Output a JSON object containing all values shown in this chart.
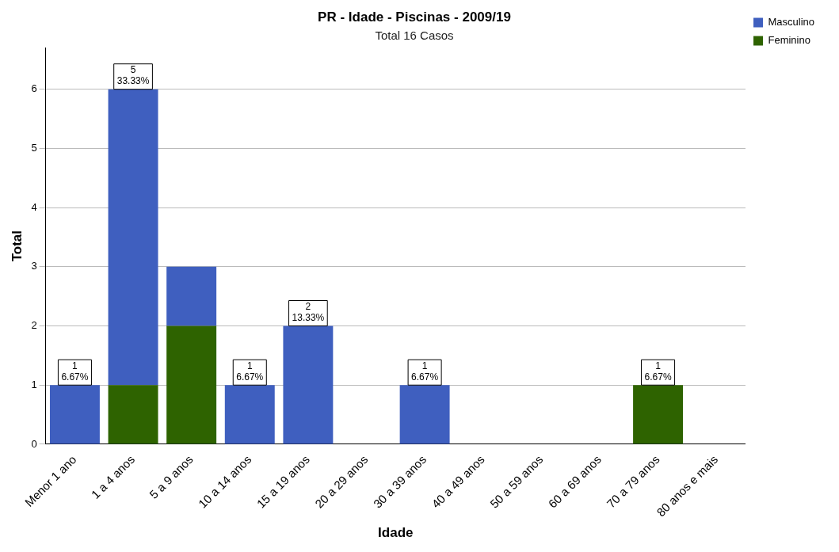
{
  "chart_data": {
    "type": "bar",
    "title": "PR - Idade - Piscinas - 2009/19",
    "subtitle": "Total 16 Casos",
    "xlabel": "Idade",
    "ylabel": "Total",
    "categories": [
      "Menor 1 ano",
      "1 a 4 anos",
      "5 a 9 anos",
      "10 a 14 anos",
      "15 a 19 anos",
      "20 a 29 anos",
      "30 a 39 anos",
      "40 a 49 anos",
      "50 a 59 anos",
      "60 a 69 anos",
      "70 a 79 anos",
      "80 anos e mais"
    ],
    "stacked": true,
    "series": [
      {
        "name": "Feminino",
        "color": "#2e6300",
        "values": [
          0,
          1,
          2,
          0,
          0,
          0,
          0,
          0,
          0,
          0,
          1,
          0
        ],
        "value_labels": [
          null,
          null,
          null,
          null,
          null,
          null,
          null,
          null,
          null,
          null,
          "1\n6.67%",
          null
        ]
      },
      {
        "name": "Masculino",
        "color": "#3f5fbf",
        "values": [
          1,
          5,
          1,
          1,
          2,
          0,
          1,
          0,
          0,
          0,
          0,
          0
        ],
        "value_labels": [
          "1\n6.67%",
          "5\n33.33%",
          null,
          "1\n6.67%",
          "2\n13.33%",
          null,
          "1\n6.67%",
          null,
          null,
          null,
          null,
          null
        ]
      }
    ],
    "ylim": [
      0,
      6.7
    ],
    "yticks": [
      0,
      1,
      2,
      3,
      4,
      5,
      6
    ],
    "grid": "y",
    "legend": "top right"
  }
}
